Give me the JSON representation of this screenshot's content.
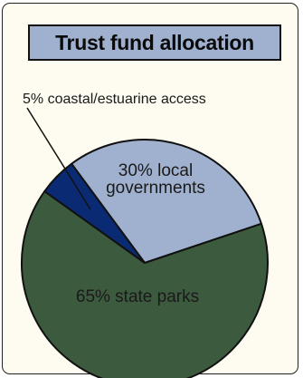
{
  "chart_data": {
    "type": "pie",
    "title": "Trust fund allocation",
    "slices": [
      {
        "label": "30% local governments",
        "lines": [
          "30% local",
          "governments"
        ],
        "value": 30,
        "color": "#9fb1cf"
      },
      {
        "label": "65% state parks",
        "lines": [
          "65% state parks"
        ],
        "value": 65,
        "color": "#3c5a3d"
      },
      {
        "label": "5% coastal/estuarine access",
        "lines": [
          "5% coastal/estuarine access"
        ],
        "value": 5,
        "color": "#0a2a73"
      }
    ],
    "slice_edge_color": "#111111",
    "legend": "none"
  }
}
